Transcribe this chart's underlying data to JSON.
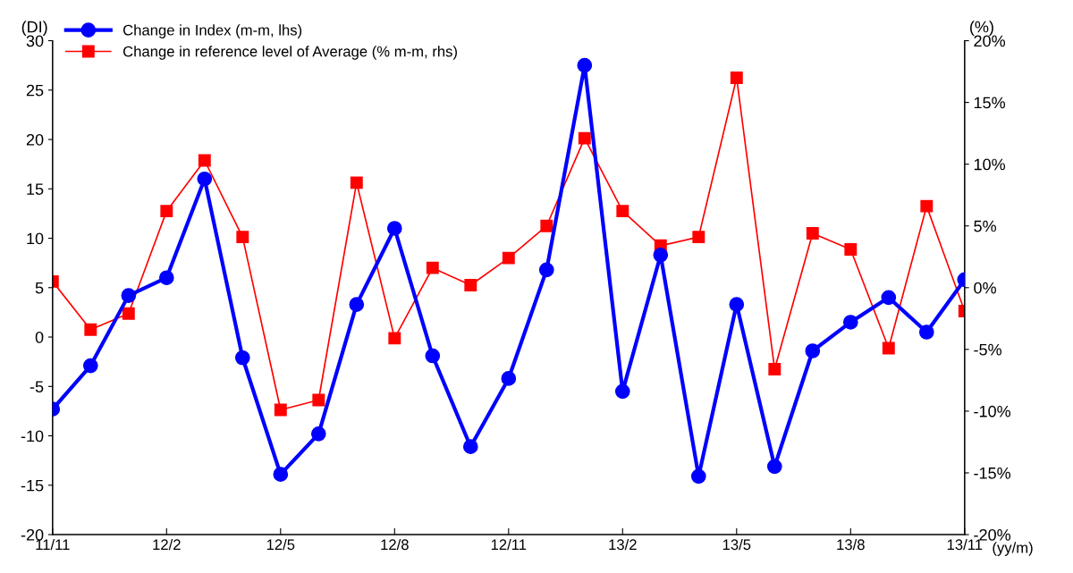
{
  "chart_data": {
    "type": "line",
    "categories": [
      "11/11",
      null,
      null,
      "12/2",
      null,
      null,
      "12/5",
      null,
      null,
      "12/8",
      null,
      null,
      "12/11",
      null,
      null,
      "13/2",
      null,
      null,
      "13/5",
      null,
      null,
      "13/8",
      null,
      null,
      "13/11"
    ],
    "xlabel": "(yy/m)",
    "ylabel": "(DI)",
    "y2label": "(%)",
    "series": [
      {
        "name": "Change in Index (m-m, lhs)",
        "color": "#0000ff",
        "marker": "circle",
        "values": [
          -7.3,
          -2.9,
          4.2,
          6.0,
          16.0,
          -2.1,
          -13.9,
          -9.8,
          3.3,
          11.0,
          -1.9,
          -11.1,
          -4.2,
          6.8,
          27.5,
          -5.5,
          8.3,
          -14.1,
          3.3,
          -13.1,
          -1.4,
          1.5,
          4.0,
          0.5,
          5.8
        ]
      },
      {
        "name": "Change in reference level of Average (% m-m, rhs)",
        "color": "#ff0000",
        "marker": "square",
        "axis": "y2",
        "values": [
          0.5,
          -3.4,
          -2.1,
          6.2,
          10.3,
          4.1,
          -9.9,
          -9.1,
          8.5,
          -4.1,
          1.6,
          0.2,
          2.4,
          5.0,
          12.1,
          6.2,
          3.4,
          4.1,
          17.0,
          -6.6,
          4.4,
          3.1,
          -4.9,
          6.6,
          -1.9
        ]
      }
    ],
    "ylim": [
      -20,
      30
    ],
    "yticks": [
      -20,
      -15,
      -10,
      -5,
      0,
      5,
      10,
      15,
      20,
      25,
      30
    ],
    "y2lim": [
      -20,
      20
    ],
    "y2ticks": [
      {
        "value": -20,
        "label": "-20%"
      },
      {
        "value": -15,
        "label": "-15%"
      },
      {
        "value": -10,
        "label": "-10%"
      },
      {
        "value": -5,
        "label": "-5%"
      },
      {
        "value": 0,
        "label": "0%"
      },
      {
        "value": 5,
        "label": "5%"
      },
      {
        "value": 10,
        "label": "10%"
      },
      {
        "value": 15,
        "label": "15%"
      },
      {
        "value": 20,
        "label": "20%"
      }
    ],
    "grid": false,
    "legend": "top left"
  }
}
